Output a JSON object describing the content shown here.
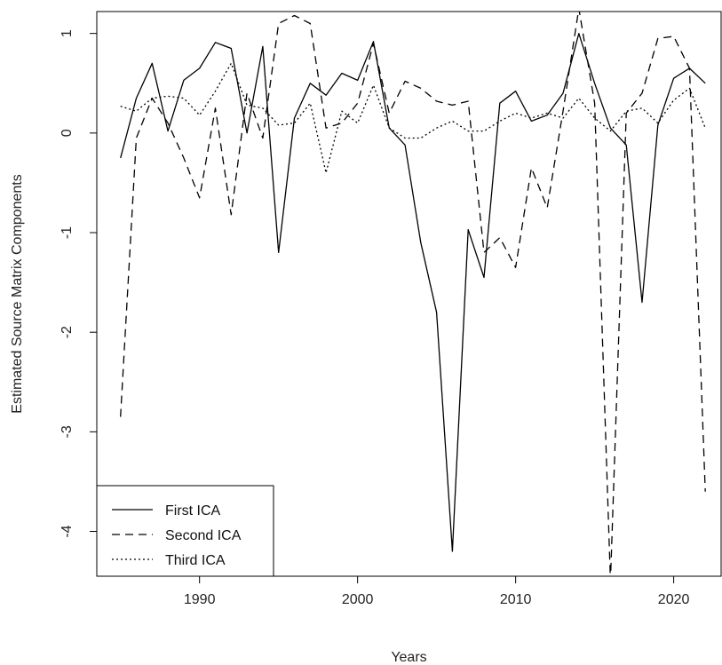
{
  "chart_data": {
    "type": "line",
    "title": "",
    "xlabel": "Years",
    "ylabel": "Estimated Source Matrix Components",
    "xlim": [
      1983.5,
      2023.0
    ],
    "ylim": [
      -4.45,
      1.22
    ],
    "x_ticks": [
      1990,
      2000,
      2010,
      2020
    ],
    "x_tick_labels": [
      "1990",
      "2000",
      "2010",
      "2020"
    ],
    "y_ticks": [
      -4,
      -3,
      -2,
      -1,
      0,
      1
    ],
    "y_tick_labels": [
      "-4",
      "-3",
      "-2",
      "-1",
      "0",
      "1"
    ],
    "grid": false,
    "legend_position": "bottom-left",
    "x": [
      1985,
      1986,
      1987,
      1988,
      1989,
      1990,
      1991,
      1992,
      1993,
      1994,
      1995,
      1996,
      1997,
      1998,
      1999,
      2000,
      2001,
      2002,
      2003,
      2004,
      2005,
      2006,
      2007,
      2008,
      2009,
      2010,
      2011,
      2012,
      2013,
      2014,
      2015,
      2016,
      2017,
      2018,
      2019,
      2020,
      2021,
      2022
    ],
    "series": [
      {
        "name": "First ICA",
        "line_style": "solid",
        "values": [
          -0.25,
          0.35,
          0.7,
          0.02,
          0.53,
          0.65,
          0.91,
          0.85,
          0.0,
          0.87,
          -1.2,
          0.15,
          0.5,
          0.38,
          0.6,
          0.53,
          0.92,
          0.05,
          -0.12,
          -1.1,
          -1.8,
          -4.2,
          -0.97,
          -1.45,
          0.3,
          0.42,
          0.12,
          0.18,
          0.4,
          1.0,
          0.5,
          0.05,
          -0.12,
          -1.7,
          0.08,
          0.55,
          0.65,
          0.5
        ]
      },
      {
        "name": "Second ICA",
        "line_style": "dashed",
        "values": [
          -2.85,
          -0.05,
          0.35,
          0.1,
          -0.25,
          -0.65,
          0.25,
          -0.82,
          0.4,
          -0.05,
          1.1,
          1.18,
          1.1,
          0.05,
          0.1,
          0.3,
          0.9,
          0.2,
          0.52,
          0.45,
          0.32,
          0.28,
          0.32,
          -1.2,
          -1.05,
          -1.35,
          -0.35,
          -0.75,
          0.22,
          1.25,
          0.3,
          -4.5,
          0.2,
          0.4,
          0.95,
          0.97,
          0.65,
          -3.6
        ]
      },
      {
        "name": "Third ICA",
        "line_style": "dotted",
        "values": [
          0.27,
          0.22,
          0.35,
          0.37,
          0.35,
          0.18,
          0.42,
          0.7,
          0.28,
          0.25,
          0.08,
          0.1,
          0.3,
          -0.4,
          0.22,
          0.1,
          0.48,
          0.05,
          -0.05,
          -0.05,
          0.05,
          0.12,
          0.02,
          0.02,
          0.12,
          0.2,
          0.15,
          0.2,
          0.15,
          0.35,
          0.15,
          0.02,
          0.22,
          0.25,
          0.1,
          0.33,
          0.45,
          0.05
        ]
      }
    ]
  }
}
